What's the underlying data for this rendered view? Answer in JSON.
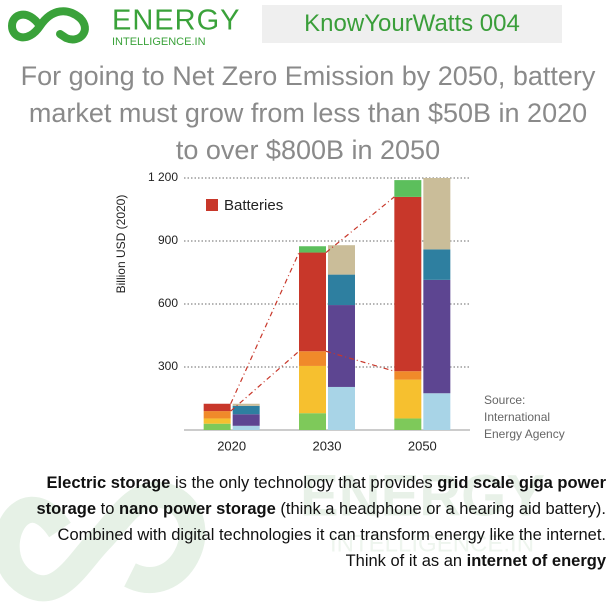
{
  "logo": {
    "name": "ENERGY",
    "domain": "INTELLIGENCE.IN"
  },
  "tag": "KnowYourWatts 004",
  "headline": "For going to Net Zero Emission by 2050, battery market must grow from less than $50B in 2020 to over $800B in 2050",
  "chart_data": {
    "type": "bar",
    "ylabel": "Billion USD (2020)",
    "categories": [
      "2020",
      "2030",
      "2050"
    ],
    "ylim": [
      0,
      1200
    ],
    "yticks": [
      300,
      600,
      900,
      {
        "value": 1200,
        "label": "1 200"
      }
    ],
    "grid": true,
    "series": [
      {
        "color": "#7ec95a",
        "stack": 0,
        "values": [
          30,
          80,
          55
        ]
      },
      {
        "color": "#f6c02f",
        "stack": 0,
        "values": [
          25,
          225,
          185
        ]
      },
      {
        "color": "#f08a2a",
        "stack": 0,
        "values": [
          35,
          70,
          40
        ]
      },
      {
        "name": "Batteries",
        "color": "#c8372a",
        "stack": 0,
        "values": [
          35,
          470,
          830
        ]
      },
      {
        "color": "#5cbf5c",
        "stack": 0,
        "values": [
          null,
          30,
          80
        ]
      },
      {
        "color": "#a8d4e7",
        "stack": 1,
        "values": [
          20,
          205,
          175
        ]
      },
      {
        "color": "#5d4591",
        "stack": 1,
        "values": [
          55,
          390,
          540
        ]
      },
      {
        "color": "#2e7fa0",
        "stack": 1,
        "values": [
          40,
          145,
          145
        ]
      },
      {
        "color": "#cabd99",
        "stack": 1,
        "values": [
          10,
          140,
          340
        ]
      }
    ]
  },
  "source": "Source: International Energy Agency",
  "body": [
    {
      "text": "Electric storage",
      "bold": true
    },
    {
      "text": " is the only technology that provides ",
      "bold": false
    },
    {
      "text": "grid scale giga power storage",
      "bold": true
    },
    {
      "text": " to ",
      "bold": false
    },
    {
      "text": "nano power storage",
      "bold": true
    },
    {
      "text": " (think a headphone or a hearing aid battery). Combined with digital technologies it can transform energy like the internet. Think of it as an ",
      "bold": false
    },
    {
      "text": "internet of energy",
      "bold": true
    }
  ]
}
